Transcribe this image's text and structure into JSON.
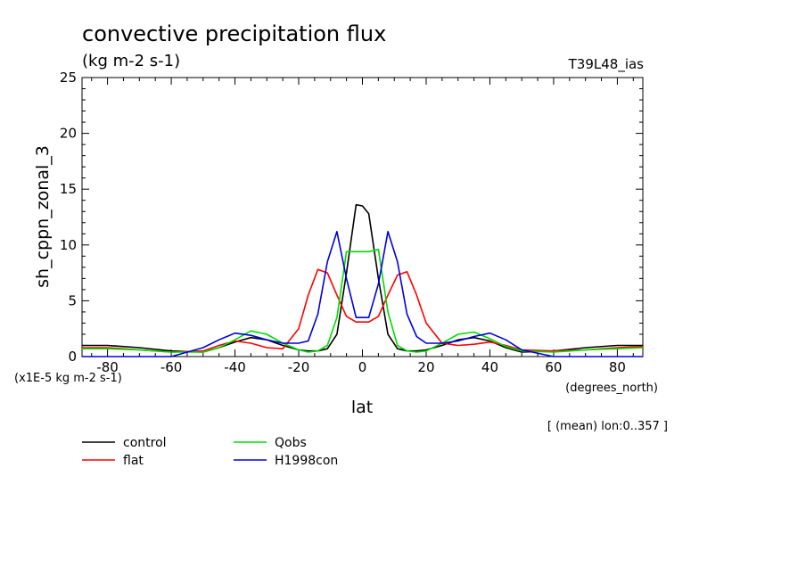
{
  "chart_data": {
    "type": "line",
    "title": "convective precipitation flux",
    "units": "(kg m-2 s-1)",
    "model_label": "T39L48_ias",
    "ylabel": "sh_cppn_zonal_3",
    "xlabel": "lat",
    "xunits": "(degrees_north)",
    "yscale_note": "(x1E-5 kg m-2 s-1)",
    "mean_note": "[ (mean) lon:0..357 ]",
    "xlim": [
      -88,
      88
    ],
    "ylim": [
      0,
      25
    ],
    "xticks": [
      -80,
      -60,
      -40,
      -20,
      0,
      20,
      40,
      60,
      80
    ],
    "xtick_labels": [
      "-80",
      "-60",
      "-40",
      "-20",
      "0",
      "20",
      "40",
      "60",
      "80"
    ],
    "yticks": [
      0,
      5,
      10,
      15,
      20,
      25
    ],
    "ytick_labels": [
      "0",
      "5",
      "10",
      "15",
      "20",
      "25"
    ],
    "legend_placement": "below",
    "series": [
      {
        "name": "control",
        "color": "#000000",
        "x": [
          -88,
          -80,
          -70,
          -60,
          -50,
          -45,
          -40,
          -35,
          -30,
          -25,
          -20,
          -17,
          -14,
          -11,
          -8,
          -5,
          -2,
          0,
          2,
          5,
          8,
          11,
          14,
          17,
          20,
          25,
          30,
          35,
          40,
          45,
          50,
          60,
          70,
          80,
          88
        ],
        "y": [
          1.0,
          1.0,
          0.8,
          0.5,
          0.4,
          0.8,
          1.3,
          1.7,
          1.5,
          1.0,
          0.6,
          0.5,
          0.5,
          0.7,
          2.0,
          7.5,
          13.6,
          13.5,
          12.8,
          7.0,
          2.0,
          0.7,
          0.5,
          0.5,
          0.6,
          1.0,
          1.5,
          1.7,
          1.4,
          0.8,
          0.4,
          0.5,
          0.8,
          1.0,
          1.0
        ]
      },
      {
        "name": "flat",
        "color": "#ff0000",
        "x": [
          -88,
          -80,
          -70,
          -60,
          -50,
          -45,
          -40,
          -35,
          -30,
          -25,
          -20,
          -17,
          -14,
          -11,
          -8,
          -5,
          -2,
          0,
          2,
          5,
          8,
          11,
          14,
          17,
          20,
          25,
          30,
          35,
          40,
          45,
          50,
          60,
          70,
          80,
          88
        ],
        "y": [
          0.8,
          0.8,
          0.6,
          0.4,
          0.5,
          1.0,
          1.4,
          1.2,
          0.8,
          0.7,
          2.5,
          5.5,
          7.8,
          7.5,
          5.5,
          3.6,
          3.1,
          3.1,
          3.1,
          3.6,
          5.5,
          7.3,
          7.6,
          5.5,
          3.0,
          1.2,
          1.0,
          1.1,
          1.3,
          1.0,
          0.6,
          0.5,
          0.6,
          0.8,
          0.9
        ]
      },
      {
        "name": "Qobs",
        "color": "#00dd00",
        "x": [
          -88,
          -80,
          -70,
          -60,
          -50,
          -45,
          -40,
          -35,
          -30,
          -25,
          -20,
          -17,
          -14,
          -11,
          -8,
          -5,
          -2,
          0,
          2,
          5,
          8,
          11,
          14,
          17,
          20,
          25,
          30,
          35,
          40,
          45,
          50,
          60,
          70,
          80,
          88
        ],
        "y": [
          0.7,
          0.7,
          0.6,
          0.4,
          0.4,
          0.8,
          1.5,
          2.3,
          2.0,
          1.2,
          0.6,
          0.4,
          0.5,
          1.0,
          3.5,
          9.4,
          9.4,
          9.4,
          9.4,
          9.6,
          4.0,
          1.0,
          0.5,
          0.4,
          0.5,
          1.2,
          2.0,
          2.2,
          1.6,
          0.9,
          0.5,
          0.4,
          0.6,
          0.7,
          0.8
        ]
      },
      {
        "name": "H1998con",
        "color": "#0000dd",
        "x": [
          -88,
          -80,
          -70,
          -60,
          -50,
          -45,
          -40,
          -35,
          -30,
          -25,
          -20,
          -17,
          -14,
          -11,
          -8,
          -5,
          -2,
          0,
          2,
          5,
          8,
          11,
          14,
          17,
          20,
          25,
          30,
          35,
          40,
          45,
          50,
          60,
          70,
          80,
          88
        ],
        "y": [
          0.0,
          0.0,
          0.0,
          0.0,
          0.8,
          1.5,
          2.1,
          1.9,
          1.5,
          1.2,
          1.2,
          1.4,
          3.8,
          8.5,
          11.2,
          7.0,
          3.5,
          3.5,
          3.5,
          6.5,
          11.2,
          8.5,
          3.8,
          1.8,
          1.2,
          1.2,
          1.4,
          1.8,
          2.1,
          1.5,
          0.6,
          0.0,
          0.0,
          0.0,
          0.0
        ]
      }
    ]
  }
}
